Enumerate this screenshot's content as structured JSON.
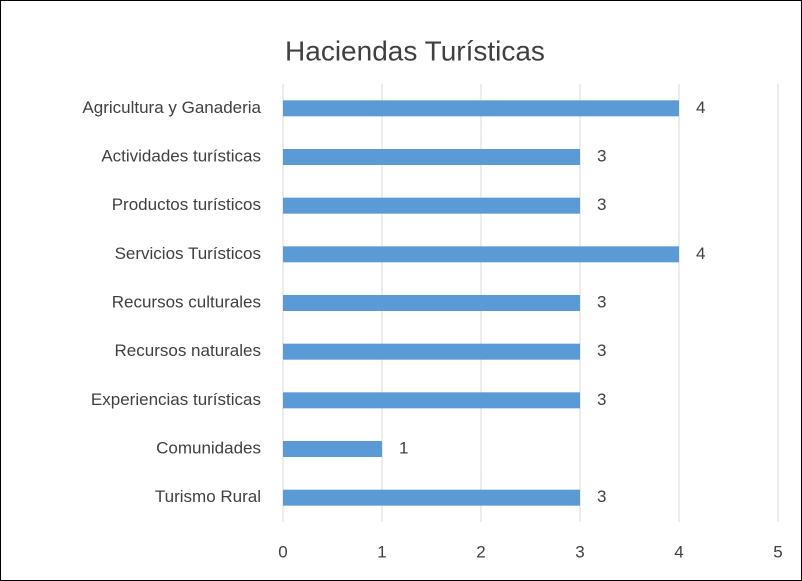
{
  "chart_data": {
    "type": "hbar",
    "title": "Haciendas Turísticas",
    "categories": [
      "Agricultura y Ganaderia",
      "Actividades turísticas",
      "Productos turísticos",
      "Servicios Turísticos",
      "Recursos culturales",
      "Recursos naturales",
      "Experiencias turísticas",
      "Comunidades",
      "Turismo Rural"
    ],
    "values": [
      4,
      3,
      3,
      4,
      3,
      3,
      3,
      1,
      3
    ],
    "color": "#5b9bd5",
    "xlim": [
      0,
      5
    ],
    "xticks": [
      0,
      1,
      2,
      3,
      4,
      5
    ],
    "grid": true
  }
}
